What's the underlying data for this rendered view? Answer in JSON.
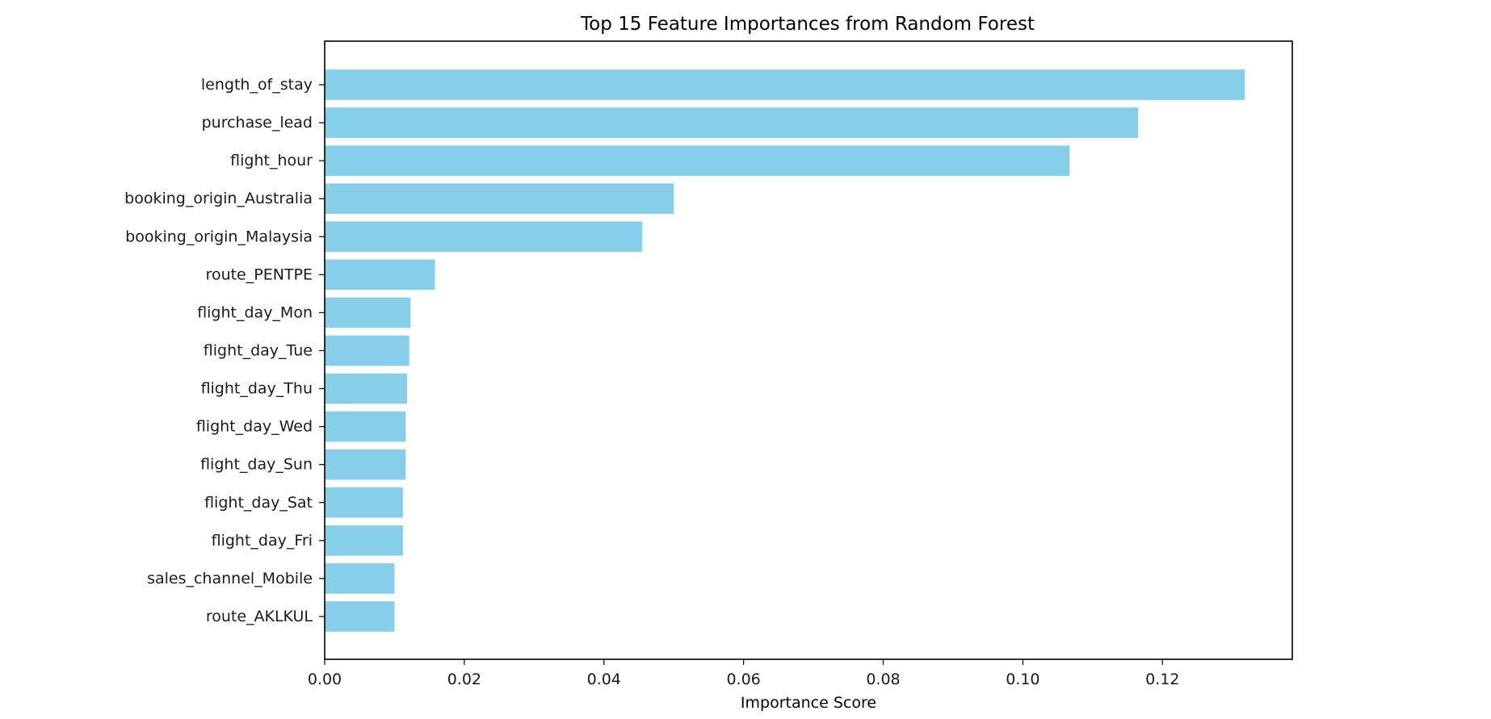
{
  "chart_data": {
    "type": "bar",
    "orientation": "horizontal",
    "title": "Top 15 Feature Importances from Random Forest",
    "xlabel": "Importance Score",
    "ylabel": "",
    "categories": [
      "length_of_stay",
      "purchase_lead",
      "flight_hour",
      "booking_origin_Australia",
      "booking_origin_Malaysia",
      "route_PENTPE",
      "flight_day_Mon",
      "flight_day_Tue",
      "flight_day_Thu",
      "flight_day_Wed",
      "flight_day_Sun",
      "flight_day_Sat",
      "flight_day_Fri",
      "sales_channel_Mobile",
      "route_AKLKUL"
    ],
    "values": [
      0.1318,
      0.1165,
      0.1067,
      0.05,
      0.0455,
      0.0158,
      0.0123,
      0.0121,
      0.0118,
      0.0116,
      0.0116,
      0.0112,
      0.0112,
      0.01,
      0.01
    ],
    "xlim": [
      0,
      0.1386
    ],
    "xticks": [
      0.0,
      0.02,
      0.04,
      0.06,
      0.08,
      0.1,
      0.12
    ],
    "xtick_labels": [
      "0.00",
      "0.02",
      "0.04",
      "0.06",
      "0.08",
      "0.10",
      "0.12"
    ],
    "grid": false,
    "legend": "none",
    "bar_color": "#87ceeb"
  }
}
